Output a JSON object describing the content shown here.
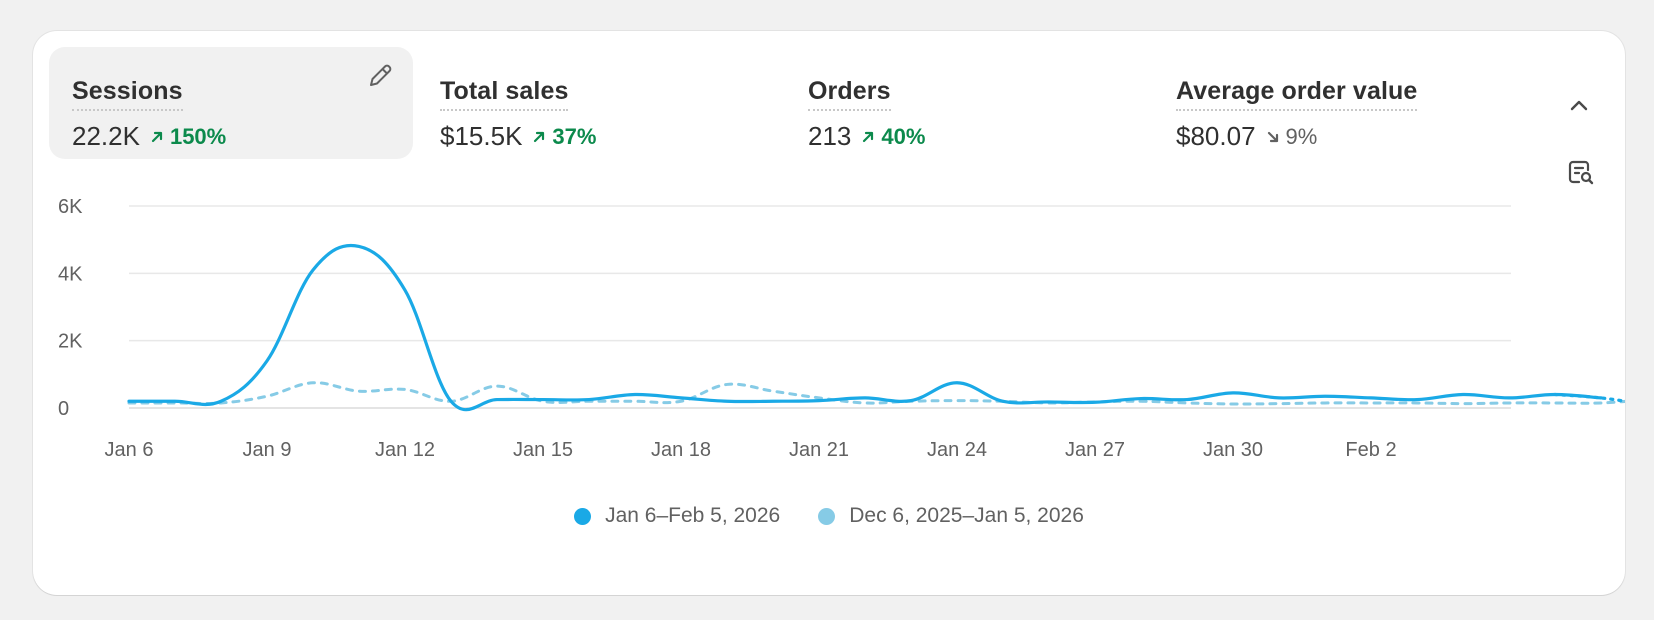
{
  "metrics": [
    {
      "label": "Sessions",
      "value": "22.2K",
      "delta": "150%",
      "direction": "up",
      "active": true
    },
    {
      "label": "Total sales",
      "value": "$15.5K",
      "delta": "37%",
      "direction": "up",
      "active": false
    },
    {
      "label": "Orders",
      "value": "213",
      "delta": "40%",
      "direction": "up",
      "active": false
    },
    {
      "label": "Average order value",
      "value": "$80.07",
      "delta": "9%",
      "direction": "down",
      "active": false
    }
  ],
  "icons": {
    "edit": "pencil-icon",
    "collapse": "chevron-up-icon",
    "analysis": "report-search-icon",
    "trend_up": "arrow-up-right-icon",
    "trend_down": "arrow-down-right-icon"
  },
  "colors": {
    "current": "#1aa9e6",
    "previous": "#86cbe6",
    "positive": "#0c8a4c",
    "neutral": "#616161"
  },
  "chart_data": {
    "type": "line",
    "title": "",
    "xlabel": "",
    "ylabel": "",
    "ylim": [
      0,
      6000
    ],
    "yticks": [
      0,
      2000,
      4000,
      6000
    ],
    "ytick_labels": [
      "0",
      "2K",
      "4K",
      "6K"
    ],
    "xtick_labels": [
      "Jan 6",
      "Jan 9",
      "Jan 12",
      "Jan 15",
      "Jan 18",
      "Jan 21",
      "Jan 24",
      "Jan 27",
      "Jan 30",
      "Feb 2"
    ],
    "grid": true,
    "legend_position": "bottom-center",
    "series": [
      {
        "name": "Jan 6–Feb 5, 2026",
        "style": "solid",
        "values": [
          200,
          200,
          200,
          1400,
          4100,
          4800,
          3500,
          200,
          250,
          250,
          250,
          400,
          300,
          200,
          200,
          220,
          300,
          220,
          750,
          200,
          180,
          170,
          280,
          250,
          450,
          300,
          350,
          300,
          250,
          400,
          300,
          400,
          300,
          100
        ]
      },
      {
        "name": "Dec 6, 2025–Jan 5, 2026",
        "style": "dashed",
        "values": [
          150,
          150,
          150,
          350,
          750,
          500,
          550,
          200,
          650,
          200,
          200,
          200,
          200,
          700,
          500,
          300,
          150,
          200,
          220,
          200,
          150,
          180,
          200,
          150,
          120,
          130,
          150,
          150,
          150,
          130,
          150,
          150,
          150,
          250
        ]
      }
    ]
  },
  "legend": [
    {
      "label": "Jan 6–Feb 5, 2026",
      "color": "#1aa9e6"
    },
    {
      "label": "Dec 6, 2025–Jan 5, 2026",
      "color": "#86cbe6"
    }
  ]
}
